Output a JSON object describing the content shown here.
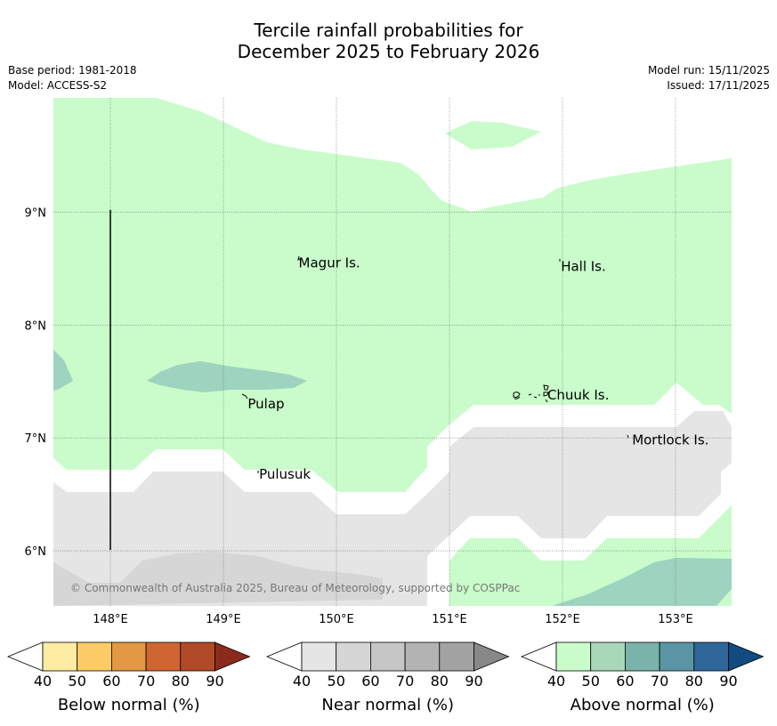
{
  "title": {
    "line1": "Tercile rainfall probabilities for",
    "line2": "December 2025 to February 2026"
  },
  "meta": {
    "base_period": "Base period: 1981-2018",
    "model": "Model: ACCESS-S2",
    "model_run": "Model run: 15/11/2025",
    "issued": "Issued: 17/11/2025"
  },
  "map": {
    "lon_range": [
      147.5,
      153.5
    ],
    "lat_range": [
      5.5,
      10.0
    ],
    "lon_ticks": [
      "148°E",
      "149°E",
      "150°E",
      "151°E",
      "152°E",
      "153°E"
    ],
    "lon_tick_values": [
      148,
      149,
      150,
      151,
      152,
      153
    ],
    "lat_ticks": [
      "9°N",
      "8°N",
      "7°N",
      "6°N"
    ],
    "lat_tick_values": [
      9,
      8,
      7,
      6
    ],
    "places": [
      {
        "name": "Magur Is.",
        "lon": 149.65,
        "lat": 8.55
      },
      {
        "name": "Hall Is.",
        "lon": 151.97,
        "lat": 8.52
      },
      {
        "name": "Pulap",
        "lon": 149.2,
        "lat": 7.3
      },
      {
        "name": "Chuuk Is.",
        "lon": 151.85,
        "lat": 7.38
      },
      {
        "name": "Mortlock Is.",
        "lon": 152.6,
        "lat": 6.98
      },
      {
        "name": "Pulusuk",
        "lon": 149.3,
        "lat": 6.68
      }
    ],
    "copyright": "© Commonwealth of Australia 2025, Bureau of Meteorology, supported by COSPPac",
    "colors": {
      "above_40": "#c9fcca",
      "above_50": "#9ed3bf",
      "near_40": "#e5e5e5",
      "near_50": "#d6d6d6",
      "white": "#ffffff"
    }
  },
  "colorbars": [
    {
      "label": "Below normal (%)",
      "ticks": [
        "40",
        "50",
        "60",
        "70",
        "80",
        "90"
      ],
      "colors": [
        "#ffffff",
        "#fdeca2",
        "#fdcc66",
        "#e39845",
        "#cf6632",
        "#b04a27",
        "#8c2a1c"
      ]
    },
    {
      "label": "Near normal (%)",
      "ticks": [
        "40",
        "50",
        "60",
        "70",
        "80",
        "90"
      ],
      "colors": [
        "#ffffff",
        "#e5e5e5",
        "#d6d6d6",
        "#c6c6c6",
        "#b3b3b3",
        "#a3a3a3",
        "#888888"
      ]
    },
    {
      "label": "Above normal (%)",
      "ticks": [
        "40",
        "50",
        "60",
        "70",
        "80",
        "90"
      ],
      "colors": [
        "#ffffff",
        "#c9fcca",
        "#a8d8b9",
        "#7ab3aa",
        "#5b95a5",
        "#30679a",
        "#124a82"
      ]
    }
  ]
}
